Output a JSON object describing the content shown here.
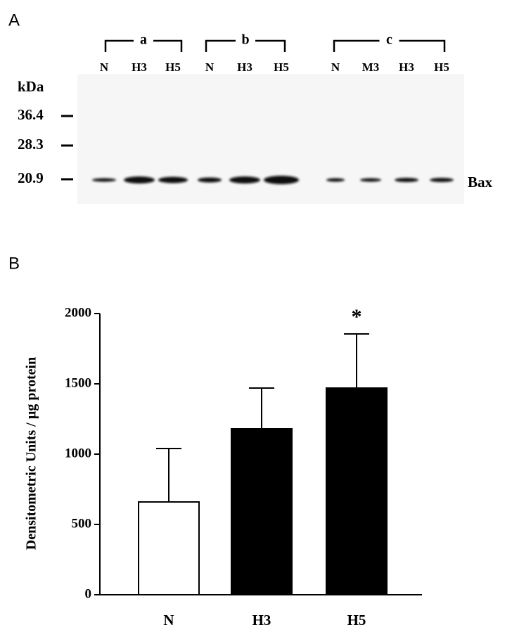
{
  "panel_a": {
    "label": "A",
    "kda": "kDa",
    "markers": [
      "36.4",
      "28.3",
      "20.9"
    ],
    "groups": [
      "a",
      "b",
      "c"
    ],
    "lanes": [
      "N",
      "H3",
      "H5",
      "N",
      "H3",
      "H5",
      "N",
      "M3",
      "H3",
      "H5"
    ],
    "protein": "Bax"
  },
  "chart_data": {
    "type": "bar",
    "panel_label": "B",
    "ylabel": "Densitometric Units / µg protein",
    "categories": [
      "N",
      "H3",
      "H5"
    ],
    "values": [
      660,
      1180,
      1470
    ],
    "errors": [
      380,
      290,
      385
    ],
    "colors": [
      "#ffffff",
      "#000000",
      "#000000"
    ],
    "ylim": [
      0,
      2000
    ],
    "yticks": [
      0,
      500,
      1000,
      1500,
      2000
    ],
    "annotations": [
      {
        "text": "*",
        "category": 2
      }
    ]
  }
}
